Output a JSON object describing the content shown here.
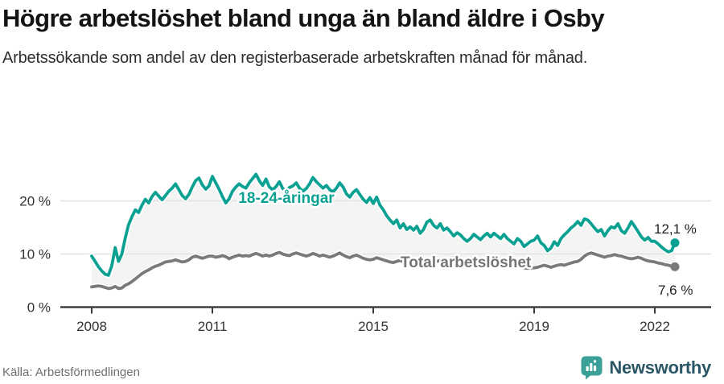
{
  "header": {
    "title": "Högre arbetslöshet bland unga än bland äldre i Osby",
    "subtitle": "Arbetssökande som andel av den registerbaserade arbetskraften månad för månad."
  },
  "chart_data": {
    "type": "line",
    "title": "Högre arbetslöshet bland unga än bland äldre i Osby",
    "subtitle": "Arbetssökande som andel av den registerbaserade arbetskraften månad för månad.",
    "xlabel": "",
    "ylabel": "",
    "x_start_year": 2008,
    "x_step_months": 1,
    "x_ticks": [
      {
        "value": 2008,
        "label": "2008"
      },
      {
        "value": 2011,
        "label": "2011"
      },
      {
        "value": 2015,
        "label": "2015"
      },
      {
        "value": 2019,
        "label": "2019"
      },
      {
        "value": 2022,
        "label": "2022"
      }
    ],
    "y_ticks": [
      {
        "value": 0,
        "label": "0 %"
      },
      {
        "value": 10,
        "label": "10 %"
      },
      {
        "value": 20,
        "label": "20 %"
      }
    ],
    "ylim": [
      0,
      27
    ],
    "grid": true,
    "legend_position": "inline-labels",
    "area_between_fill": "#f4f4f4",
    "series": [
      {
        "name": "18-24-åringar",
        "color": "#0aa193",
        "end_label": "12,1 %",
        "end_value": 12.1,
        "values": [
          9.6,
          8.6,
          7.6,
          6.8,
          6.2,
          6.0,
          7.8,
          11.2,
          8.6,
          10.0,
          13.0,
          15.5,
          17.0,
          18.3,
          17.8,
          19.2,
          20.3,
          19.6,
          20.8,
          21.6,
          20.9,
          20.2,
          21.0,
          21.8,
          22.4,
          23.2,
          22.1,
          21.0,
          20.4,
          21.2,
          22.6,
          23.8,
          24.3,
          23.0,
          22.2,
          22.8,
          24.6,
          23.4,
          22.2,
          20.8,
          19.6,
          20.4,
          21.8,
          22.6,
          23.2,
          22.7,
          22.4,
          23.4,
          24.2,
          25.0,
          23.8,
          22.9,
          24.1,
          22.6,
          22.1,
          22.7,
          23.6,
          22.3,
          21.9,
          22.5,
          22.8,
          23.4,
          22.4,
          21.8,
          22.3,
          23.2,
          24.4,
          23.6,
          23.0,
          22.4,
          22.9,
          22.1,
          21.7,
          22.4,
          23.4,
          22.6,
          21.3,
          20.7,
          21.6,
          22.1,
          21.2,
          20.3,
          19.7,
          20.6,
          19.5,
          20.7,
          19.2,
          18.3,
          17.2,
          16.4,
          15.7,
          16.4,
          14.9,
          15.7,
          14.6,
          15.1,
          14.5,
          15.2,
          13.9,
          14.6,
          16.0,
          16.4,
          15.4,
          14.9,
          15.7,
          14.5,
          14.9,
          14.2,
          13.4,
          14.0,
          13.6,
          12.9,
          12.4,
          12.9,
          13.7,
          13.2,
          12.7,
          13.4,
          13.9,
          13.2,
          13.9,
          13.4,
          12.9,
          13.7,
          12.9,
          12.4,
          11.9,
          12.9,
          12.4,
          11.4,
          11.9,
          12.4,
          12.6,
          13.4,
          12.1,
          11.6,
          10.6,
          11.1,
          12.3,
          11.6,
          12.9,
          13.6,
          14.2,
          14.9,
          15.4,
          16.1,
          15.4,
          16.6,
          16.4,
          15.7,
          14.9,
          14.2,
          14.6,
          13.4,
          14.4,
          15.1,
          14.9,
          15.7,
          14.4,
          13.9,
          14.9,
          16.1,
          15.2,
          14.2,
          13.2,
          12.6,
          13.1,
          12.4,
          12.4,
          11.9,
          11.3,
          10.8,
          10.4,
          10.6,
          12.1
        ]
      },
      {
        "name": "Total arbetslöshet",
        "color": "#7a7a7a",
        "end_label": "7,6 %",
        "end_value": 7.6,
        "values": [
          3.8,
          3.9,
          4.0,
          3.9,
          3.7,
          3.5,
          3.6,
          3.9,
          3.5,
          3.6,
          4.1,
          4.4,
          4.8,
          5.3,
          5.8,
          6.3,
          6.7,
          7.0,
          7.4,
          7.7,
          7.9,
          8.2,
          8.5,
          8.6,
          8.7,
          8.9,
          8.7,
          8.5,
          8.6,
          8.9,
          9.4,
          9.6,
          9.4,
          9.2,
          9.4,
          9.6,
          9.6,
          9.4,
          9.5,
          9.7,
          9.5,
          9.1,
          9.4,
          9.6,
          9.8,
          9.6,
          9.7,
          9.6,
          9.9,
          10.1,
          9.9,
          9.6,
          9.8,
          9.6,
          9.8,
          10.1,
          10.3,
          10.0,
          9.8,
          9.7,
          10.0,
          10.2,
          10.0,
          9.8,
          9.6,
          9.8,
          10.1,
          9.9,
          9.6,
          9.8,
          9.6,
          9.4,
          9.6,
          9.9,
          10.2,
          9.8,
          9.5,
          9.3,
          9.6,
          9.8,
          9.5,
          9.2,
          9.0,
          8.9,
          9.0,
          9.3,
          9.1,
          8.9,
          8.7,
          8.5,
          8.4,
          8.6,
          8.8,
          8.5,
          8.4,
          8.6,
          8.7,
          8.9,
          8.7,
          8.5,
          8.3,
          8.1,
          8.4,
          8.6,
          8.8,
          8.6,
          8.4,
          8.3,
          8.5,
          8.7,
          8.5,
          8.3,
          8.1,
          7.9,
          8.1,
          8.3,
          8.1,
          7.9,
          8.0,
          7.9,
          7.8,
          8.0,
          8.1,
          7.9,
          7.6,
          7.4,
          7.6,
          7.8,
          7.6,
          7.4,
          7.3,
          7.4,
          7.4,
          7.5,
          7.7,
          7.9,
          7.7,
          7.5,
          7.7,
          7.9,
          8.0,
          7.9,
          8.1,
          8.3,
          8.5,
          8.6,
          9.0,
          9.6,
          10.0,
          10.2,
          10.0,
          9.8,
          9.6,
          9.4,
          9.6,
          9.7,
          9.9,
          9.7,
          9.6,
          9.4,
          9.2,
          9.1,
          9.2,
          9.4,
          9.2,
          8.9,
          8.7,
          8.6,
          8.5,
          8.3,
          8.2,
          8.0,
          7.9,
          7.7,
          7.6
        ]
      }
    ]
  },
  "colors": {
    "grid": "#e3e3e3",
    "axis": "#3f3f3f",
    "accent_teal": "#0aa193",
    "logo_teal": "#3aa098",
    "logo_text": "#2a5666"
  },
  "footer": {
    "source": "Källa: Arbetsförmedlingen",
    "brand": "Newsworthy"
  }
}
